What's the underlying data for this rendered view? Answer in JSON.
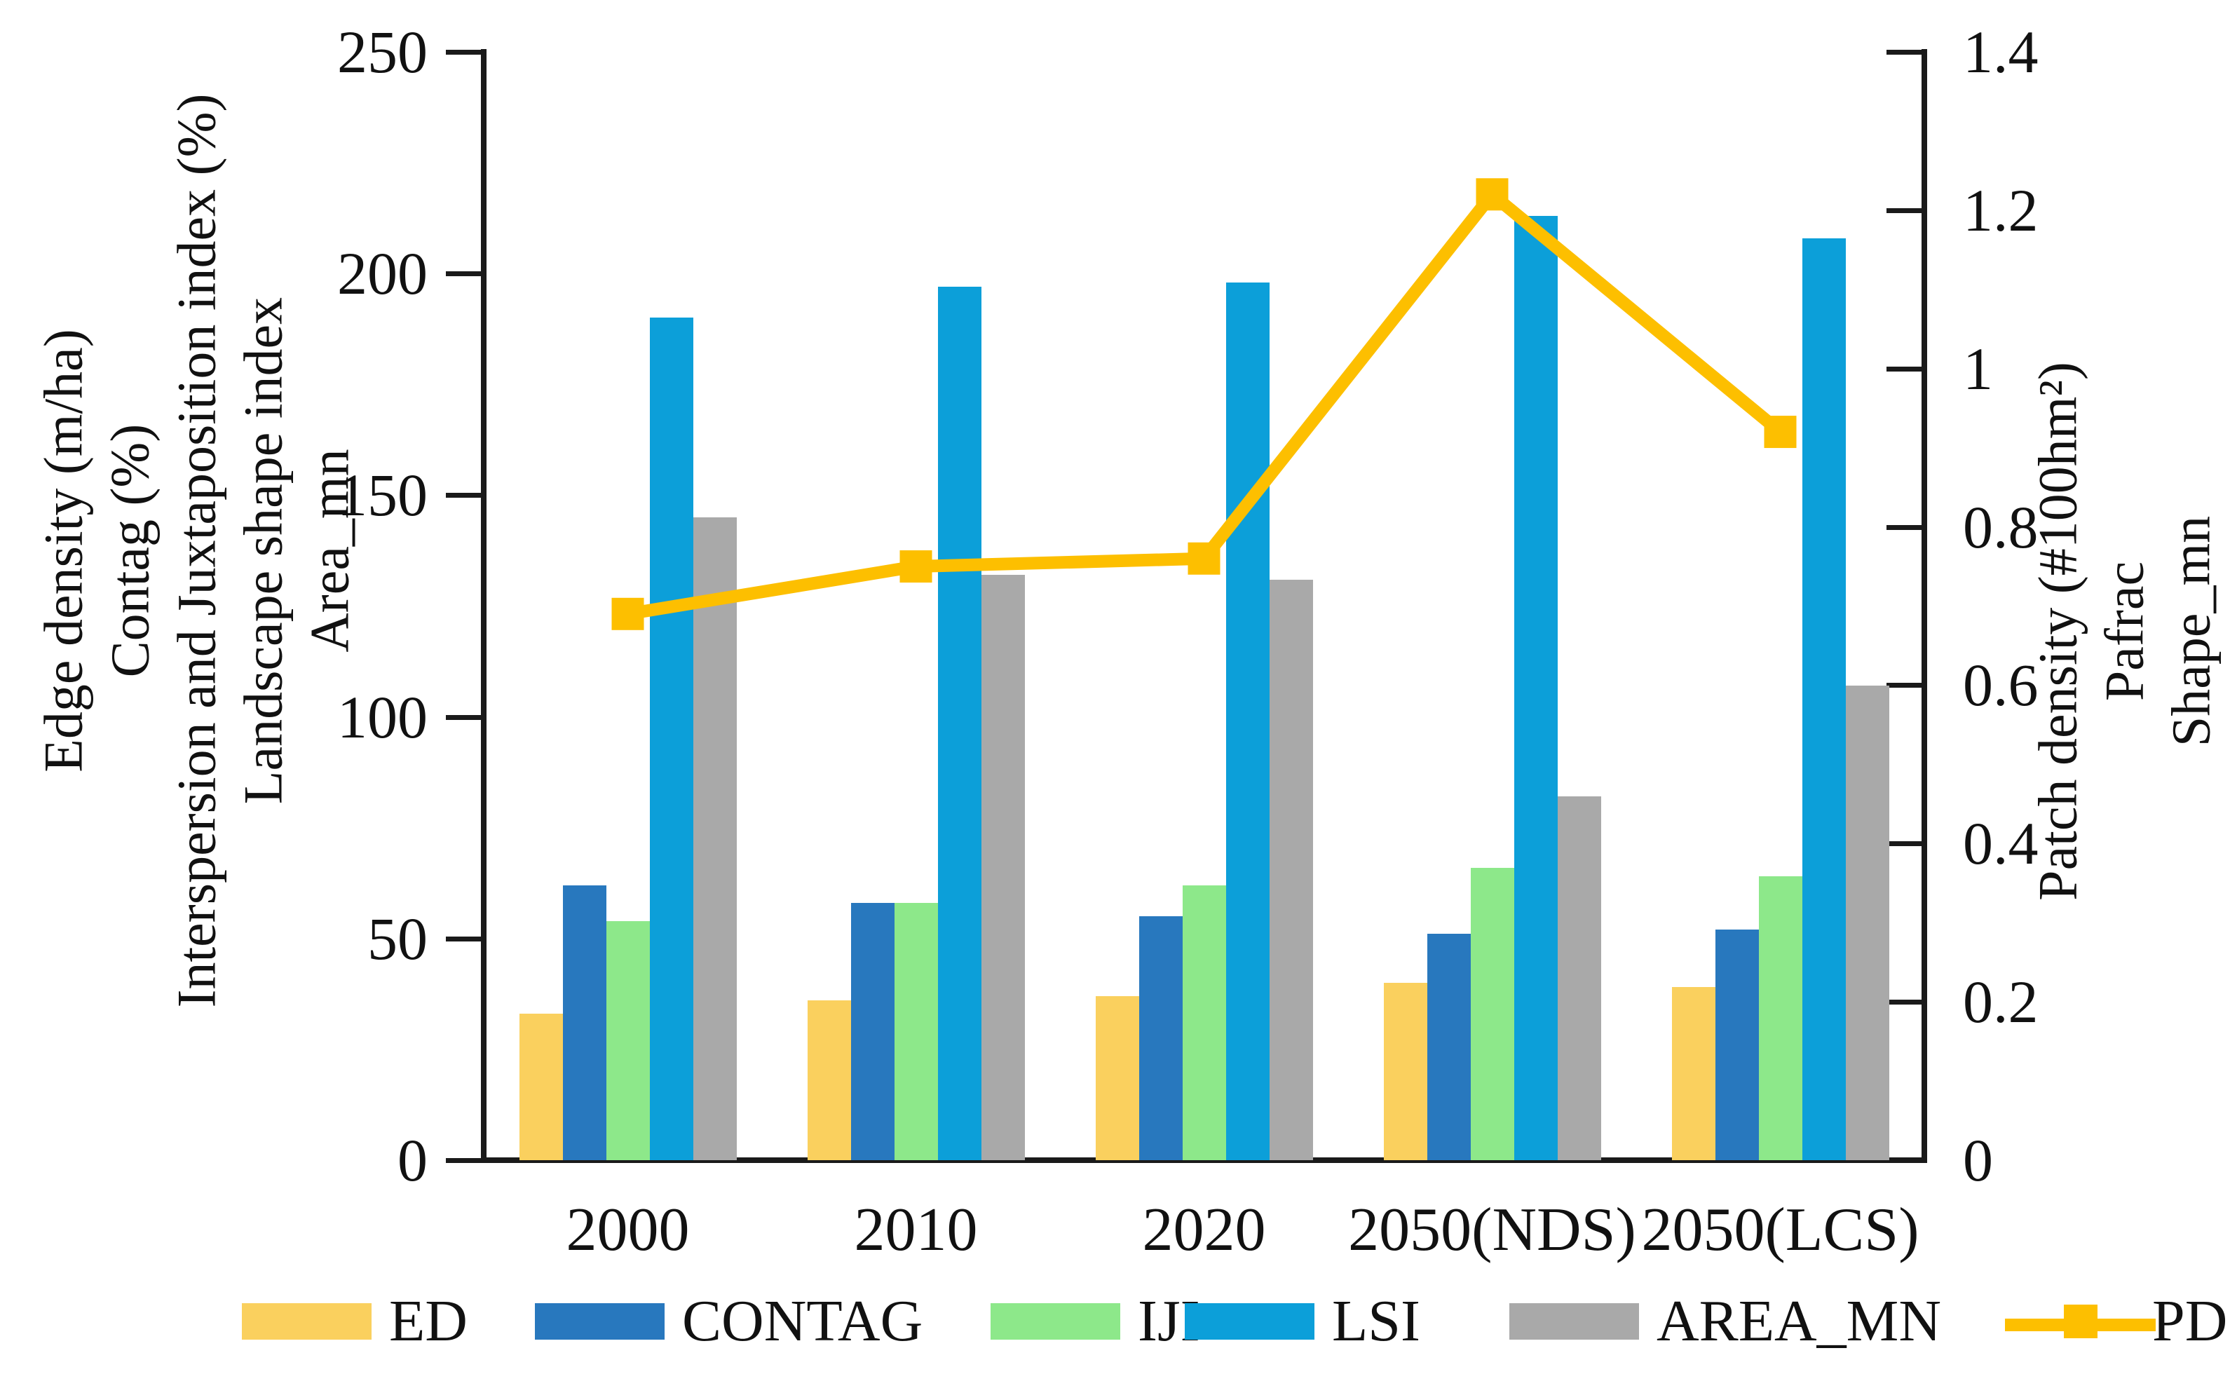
{
  "chart_data": {
    "type": "bar",
    "subtype": "grouped-bars-with-line-overlay",
    "categories": [
      "2000",
      "2010",
      "2020",
      "2050(NDS)",
      "2050(LCS)"
    ],
    "series": [
      {
        "name": "ED",
        "color": "#FAD05E",
        "axis": "left",
        "values": [
          33,
          36,
          37,
          40,
          39
        ]
      },
      {
        "name": "CONTAG",
        "color": "#2878BE",
        "axis": "left",
        "values": [
          62,
          58,
          55,
          51,
          52
        ]
      },
      {
        "name": "IJI",
        "color": "#8DE88A",
        "axis": "left",
        "values": [
          54,
          58,
          62,
          66,
          64
        ]
      },
      {
        "name": "LSI",
        "color": "#0C9FD9",
        "axis": "left",
        "values": [
          190,
          197,
          198,
          213,
          208
        ]
      },
      {
        "name": "AREA_MN",
        "color": "#A9A9A9",
        "axis": "left",
        "values": [
          145,
          132,
          131,
          82,
          107
        ]
      }
    ],
    "line_series": {
      "name": "PD",
      "color": "#FDBF00",
      "axis": "right",
      "marker": "square",
      "values": [
        0.69,
        0.75,
        0.76,
        1.22,
        0.92
      ]
    },
    "left_axis": {
      "title_lines": [
        "Edge density (m/ha)",
        "Contag (%)",
        "Interspersion and Juxtaposition index (%)",
        "Landscape shape index",
        "Area_mn"
      ],
      "min": 0,
      "max": 250,
      "tick_labels": [
        "0",
        "50",
        "100",
        "150",
        "200",
        "250"
      ]
    },
    "right_axis": {
      "title_lines": [
        "Patch density (#100hm²)",
        "Pafrac",
        "Shape_mn"
      ],
      "min": 0,
      "max": 1.4,
      "tick_labels": [
        "0",
        "0.2",
        "0.4",
        "0.6",
        "0.8",
        "1",
        "1.2",
        "1.4"
      ]
    },
    "legend": [
      "ED",
      "CONTAG",
      "IJI",
      "LSI",
      "AREA_MN",
      "PD"
    ],
    "grid": "off",
    "legend_position": "bottom"
  }
}
